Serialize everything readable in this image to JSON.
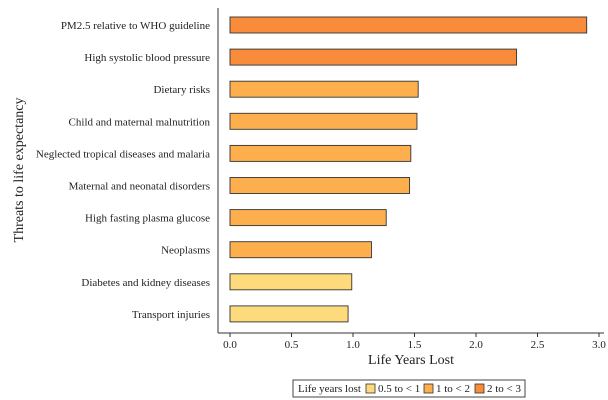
{
  "chart_data": {
    "type": "bar",
    "orientation": "horizontal",
    "xlabel": "Life Years Lost",
    "ylabel": "Threats to life expectancy",
    "xlim": [
      0,
      3.0
    ],
    "xticks": [
      0.0,
      0.5,
      1.0,
      1.5,
      2.0,
      2.5,
      3.0
    ],
    "xtick_labels": [
      "0.0",
      "0.5",
      "1.0",
      "1.5",
      "2.0",
      "2.5",
      "3.0"
    ],
    "grid": false,
    "legend_position": "bottom",
    "legend_title": "Life years lost",
    "bins": [
      {
        "label": "0.5 to < 1",
        "color": "#FDDA7B"
      },
      {
        "label": "1 to < 2",
        "color": "#FCAF4C"
      },
      {
        "label": "2 to < 3",
        "color": "#F98C3A"
      }
    ],
    "categories": [
      "PM2.5 relative to WHO guideline",
      "High systolic blood pressure",
      "Dietary risks",
      "Child and maternal malnutrition",
      "Neglected tropical diseases and malaria",
      "Maternal and neonatal disorders",
      "High fasting plasma glucose",
      "Neoplasms",
      "Diabetes and kidney diseases",
      "Transport injuries"
    ],
    "values": [
      2.9,
      2.33,
      1.53,
      1.52,
      1.47,
      1.46,
      1.27,
      1.15,
      0.99,
      0.96
    ],
    "bin_index": [
      2,
      2,
      1,
      1,
      1,
      1,
      1,
      1,
      0,
      0
    ]
  }
}
